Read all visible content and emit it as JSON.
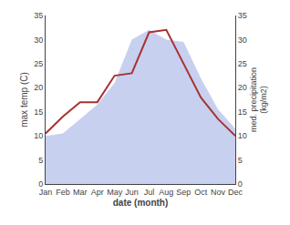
{
  "chart_data": {
    "type": "line",
    "categories": [
      "Jan",
      "Feb",
      "Mar",
      "Apr",
      "May",
      "Jun",
      "Jul",
      "Aug",
      "Sep",
      "Oct",
      "Nov",
      "Dec"
    ],
    "xlabel": "date (month)",
    "ylabel": "max temp (C)",
    "y2label": "med. precipitation\n(kg/m2)",
    "ylim": [
      0,
      35
    ],
    "yticks": [
      0,
      5,
      10,
      15,
      20,
      25,
      30,
      35
    ],
    "y2lim": [
      0,
      35
    ],
    "y2ticks": [
      0,
      5,
      10,
      15,
      20,
      25,
      30,
      35
    ],
    "grid": false,
    "series": [
      {
        "type": "area",
        "color": "#c8d0f0",
        "values": [
          10.0,
          10.5,
          13.5,
          16.5,
          21.0,
          30.0,
          32.0,
          30.0,
          29.5,
          22.0,
          15.5,
          11.5
        ]
      },
      {
        "type": "line",
        "color": "#a83232",
        "axis": "y2",
        "values": [
          10.5,
          14.0,
          17.0,
          17.0,
          22.5,
          23.0,
          31.5,
          32.0,
          25.0,
          18.0,
          13.5,
          10.0
        ]
      }
    ]
  }
}
